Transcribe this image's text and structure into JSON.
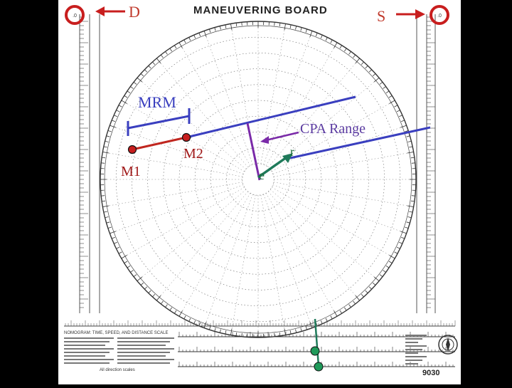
{
  "board": {
    "title": "MANEUVERING BOARD",
    "sheet_number": "9030"
  },
  "labels": {
    "direction_left": "D",
    "direction_right": "S",
    "mrm": "MRM",
    "cpa_range": "CPA Range",
    "m1": "M1",
    "m2": "M2",
    "e": "e",
    "r": "r"
  },
  "colors": {
    "relative_motion_line": "#c0261f",
    "direction_of_relative_motion": "#3a3fbf",
    "cpa_perpendicular": "#7a2aa8",
    "own_ship_vector": "#1f7a5a",
    "circle_marker": "#c81e1e",
    "scale_marker": "#1f9a5a"
  },
  "bottom_text": {
    "line1": "NOMOGRAM: TIME, SPEED, AND DISTANCE SCALE",
    "line2": "All direction scales"
  }
}
